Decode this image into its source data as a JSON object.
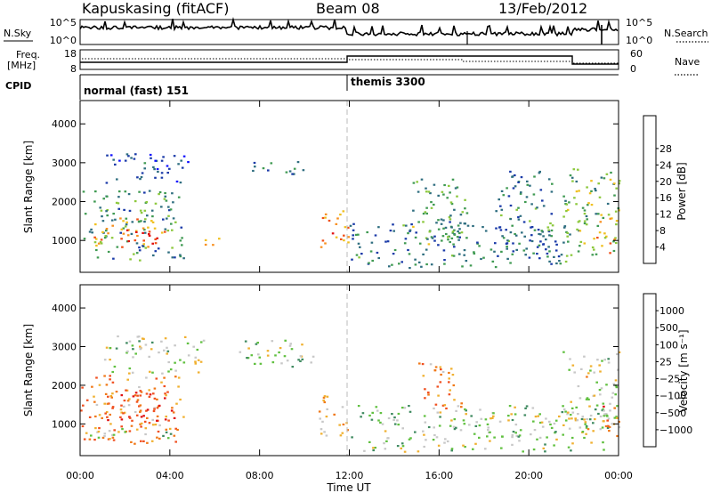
{
  "header": {
    "station": "Kapuskasing (fitACF)",
    "beam": "Beam 08",
    "date": "13/Feb/2012"
  },
  "panels": {
    "nsky": {
      "left_label": "N.Sky",
      "right_label": "N.Search",
      "left_ticks": [
        "10^5",
        "10^0"
      ],
      "right_ticks": [
        "10^5",
        "10^0"
      ]
    },
    "freq": {
      "left_label_line1": "Freq.",
      "left_label_line2": "[MHz]",
      "right_label": "Nave",
      "left_ticks": [
        "18",
        "8"
      ],
      "right_ticks": [
        "60",
        "0"
      ]
    },
    "cpid": {
      "label": "CPID",
      "segments": [
        "normal (fast) 151",
        "themis 3300"
      ]
    }
  },
  "chart_data": [
    {
      "type": "heatmap",
      "name": "power",
      "xlabel": "Time UT",
      "ylabel": "Slant Range [km]",
      "x_ticks": [
        "00:00",
        "04:00",
        "08:00",
        "12:00",
        "16:00",
        "20:00",
        "00:00"
      ],
      "y_ticks": [
        1000,
        2000,
        3000,
        4000
      ],
      "xlim_hours": [
        0,
        24
      ],
      "ylim_km": [
        180,
        4600
      ],
      "colorbar": {
        "label": "Power [dB]",
        "ticks": [
          "4",
          "8",
          "12",
          "16",
          "20",
          "24",
          "28"
        ],
        "colors": [
          "#1010ff",
          "#1a3aa8",
          "#2f6e80",
          "#3f9a52",
          "#8cc83c",
          "#f0c020",
          "#f89020",
          "#f05018",
          "#e01010"
        ]
      },
      "regions": [
        {
          "t0": 0.0,
          "t1": 4.6,
          "r0": 500,
          "r1": 2300,
          "level": 0.35
        },
        {
          "t0": 0.5,
          "t1": 3.8,
          "r0": 850,
          "r1": 1600,
          "level": 0.7
        },
        {
          "t0": 1.8,
          "t1": 3.4,
          "r0": 900,
          "r1": 1300,
          "level": 0.95
        },
        {
          "t0": 1.0,
          "t1": 4.8,
          "r0": 2500,
          "r1": 3300,
          "level": 0.2
        },
        {
          "t0": 7.5,
          "t1": 10.0,
          "r0": 2700,
          "r1": 3100,
          "level": 0.2
        },
        {
          "t0": 5.5,
          "t1": 6.2,
          "r0": 800,
          "r1": 1200,
          "level": 0.55
        },
        {
          "t0": 10.6,
          "t1": 12.0,
          "r0": 800,
          "r1": 1800,
          "level": 0.75
        },
        {
          "t0": 12.0,
          "t1": 21.8,
          "r0": 300,
          "r1": 1500,
          "level": 0.3
        },
        {
          "t0": 14.8,
          "t1": 17.2,
          "r0": 900,
          "r1": 2700,
          "level": 0.4
        },
        {
          "t0": 18.5,
          "t1": 21.0,
          "r0": 700,
          "r1": 2800,
          "level": 0.3
        },
        {
          "t0": 21.5,
          "t1": 24.0,
          "r0": 600,
          "r1": 2900,
          "level": 0.45
        },
        {
          "t0": 23.0,
          "t1": 24.0,
          "r0": 700,
          "r1": 1600,
          "level": 0.7
        }
      ]
    },
    {
      "type": "heatmap",
      "name": "velocity",
      "xlabel": "Time UT",
      "ylabel": "Slant Range [km]",
      "x_ticks": [
        "00:00",
        "04:00",
        "08:00",
        "12:00",
        "16:00",
        "20:00",
        "00:00"
      ],
      "y_ticks": [
        1000,
        2000,
        3000,
        4000
      ],
      "xlim_hours": [
        0,
        24
      ],
      "ylim_km": [
        180,
        4600
      ],
      "colorbar": {
        "label": "Velocity [m s⁻¹]",
        "ticks": [
          "1000",
          "500",
          "100",
          "25",
          "−25",
          "−100",
          "−500",
          "−1000"
        ],
        "colors": [
          "#1a3aa8",
          "#2a5a9a",
          "#3f8a60",
          "#60c040",
          "#c8c8c8",
          "#f0b030",
          "#f07818",
          "#f05020",
          "#e01010"
        ]
      },
      "regions": [
        {
          "t0": 0.0,
          "t1": 4.6,
          "r0": 500,
          "r1": 2300,
          "level": 0.7
        },
        {
          "t0": 1.0,
          "t1": 4.2,
          "r0": 1000,
          "r1": 1900,
          "level": 0.85
        },
        {
          "t0": 0.3,
          "t1": 4.0,
          "r0": 650,
          "r1": 950,
          "level": 0.45
        },
        {
          "t0": 1.0,
          "t1": 5.5,
          "r0": 2300,
          "r1": 3300,
          "level": 0.45
        },
        {
          "t0": 7.0,
          "t1": 10.5,
          "r0": 2500,
          "r1": 3200,
          "level": 0.45
        },
        {
          "t0": 10.6,
          "t1": 12.0,
          "r0": 700,
          "r1": 1800,
          "level": 0.6
        },
        {
          "t0": 12.0,
          "t1": 24.0,
          "r0": 300,
          "r1": 1500,
          "level": 0.45
        },
        {
          "t0": 15.0,
          "t1": 17.0,
          "r0": 1400,
          "r1": 2600,
          "level": 0.7
        },
        {
          "t0": 21.5,
          "t1": 24.0,
          "r0": 800,
          "r1": 2900,
          "level": 0.5
        },
        {
          "t0": 23.2,
          "t1": 24.0,
          "r0": 700,
          "r1": 1500,
          "level": 0.8
        }
      ]
    }
  ]
}
